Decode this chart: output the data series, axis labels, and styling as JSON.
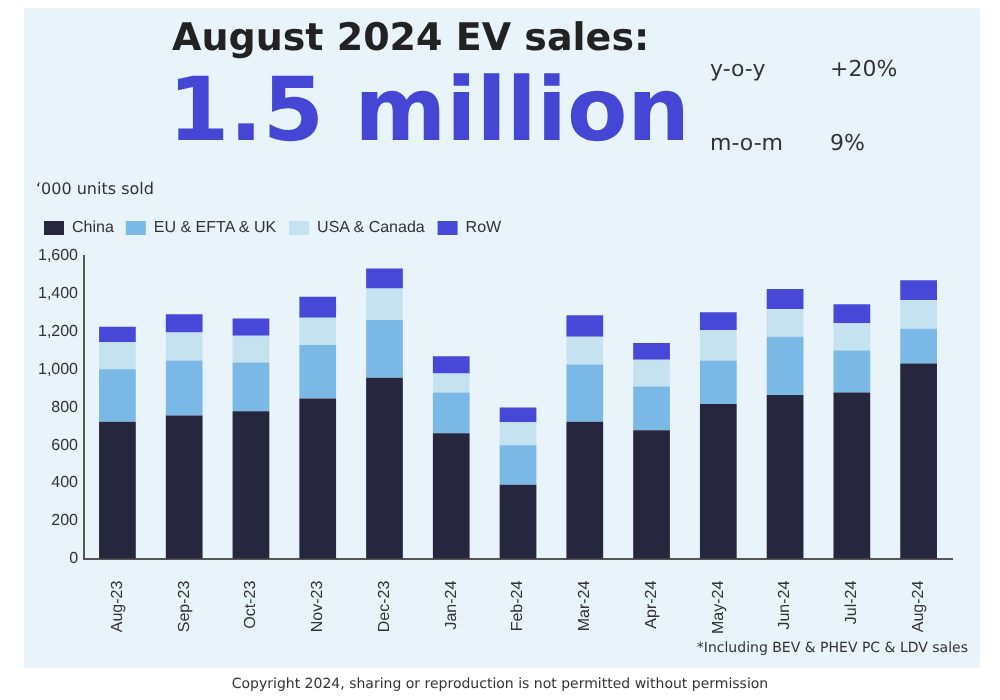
{
  "chart_data": {
    "type": "bar",
    "stacked": true,
    "title": "August 2024 EV sales:",
    "subtitle": "1.5 million",
    "ylabel": "‘000 units sold",
    "categories": [
      "Aug-23",
      "Sep-23",
      "Oct-23",
      "Nov-23",
      "Dec-23",
      "Jan-24",
      "Feb-24",
      "Mar-24",
      "Apr-24",
      "May-24",
      "Jun-24",
      "Jul-24",
      "Aug-24"
    ],
    "series": [
      {
        "name": "China",
        "color": "#26263f",
        "values": [
          724,
          757,
          779,
          846,
          957,
          663,
          391,
          724,
          679,
          818,
          865,
          879,
          1032
        ]
      },
      {
        "name": "EU & EFTA & UK",
        "color": "#7ab8e6",
        "values": [
          277,
          291,
          258,
          283,
          305,
          216,
          208,
          302,
          231,
          230,
          308,
          222,
          183
        ]
      },
      {
        "name": "USA & Canada",
        "color": "#c5e2f0",
        "values": [
          144,
          147,
          142,
          144,
          166,
          100,
          122,
          147,
          141,
          161,
          147,
          144,
          152
        ]
      },
      {
        "name": "RoW",
        "color": "#4848d8",
        "values": [
          81,
          97,
          91,
          111,
          106,
          91,
          78,
          114,
          89,
          94,
          105,
          100,
          105
        ]
      }
    ],
    "ylim": [
      0,
      1600
    ],
    "yticks": [
      0,
      200,
      400,
      600,
      800,
      {
        "value": 1000,
        "label": "1,000"
      },
      {
        "value": 1200,
        "label": "1,200"
      },
      {
        "value": 1400,
        "label": "1,400"
      },
      {
        "value": 1600,
        "label": "1,600"
      }
    ],
    "grid": false,
    "legend": "top left",
    "annotations": [
      "y-o-y",
      "+20%",
      "m-o-m",
      "9%",
      "*Including BEV & PHEV PC & LDV sales",
      "Copyright 2024, sharing or reproduction is not permitted without permission"
    ]
  }
}
